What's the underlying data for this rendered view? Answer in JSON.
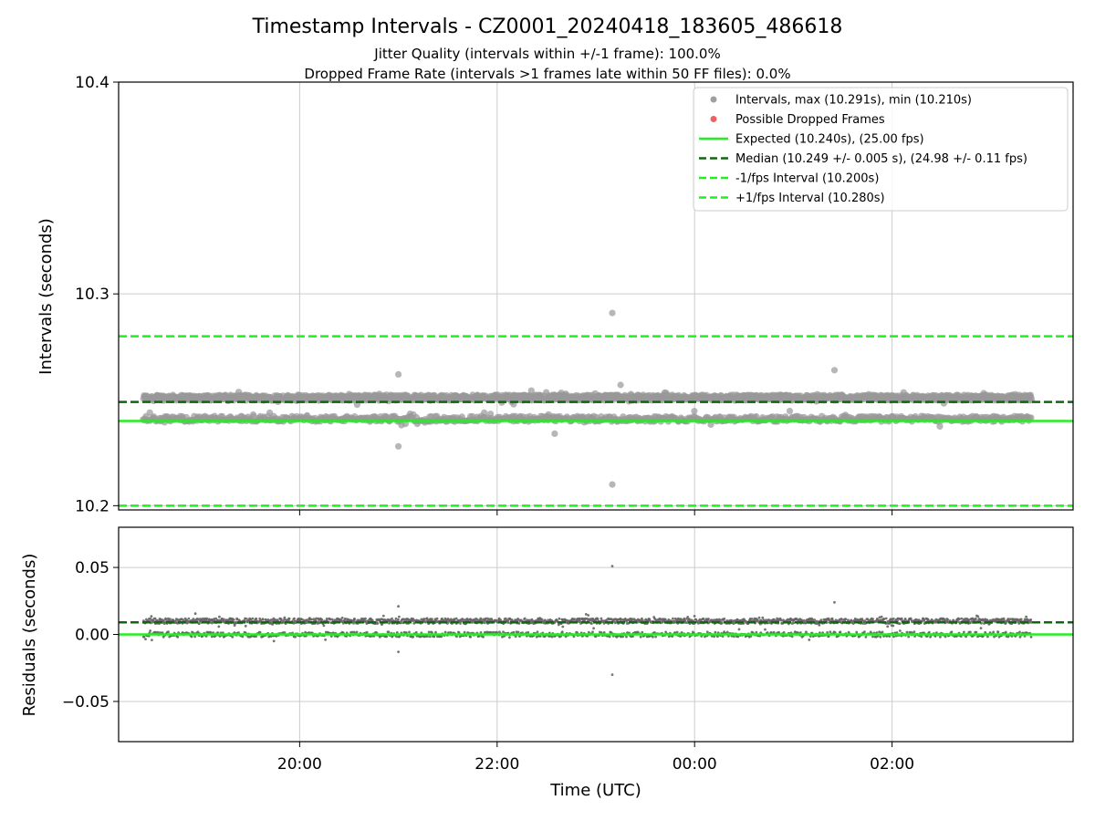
{
  "chart_data": {
    "title": "Timestamp Intervals - CZ0001_20240418_183605_486618",
    "subtitle_1": "Jitter Quality (intervals within +/-1 frame): 100.0%",
    "subtitle_2": "Dropped Frame Rate (intervals >1 frames late within 50 FF files): 0.0%",
    "xlabel": "Time (UTC)",
    "x_ticks": [
      "20:00",
      "22:00",
      "00:00",
      "02:00"
    ],
    "x_range": [
      "2024-04-18 18:10",
      "2024-04-19 03:50"
    ],
    "data_x_range": [
      "2024-04-18 18:25",
      "2024-04-19 03:25"
    ],
    "panels": [
      {
        "type": "scatter",
        "ylabel": "Intervals (seconds)",
        "ylim": [
          10.198,
          10.4
        ],
        "y_ticks": [
          "10.2",
          "10.3",
          "10.4"
        ],
        "grid": true,
        "legend_position": "top-right",
        "clusters": [
          10.251,
          10.241
        ],
        "outliers": [
          {
            "time": "2024-04-18 21:00",
            "value": 10.262
          },
          {
            "time": "2024-04-18 21:00",
            "value": 10.228
          },
          {
            "time": "2024-04-18 23:10",
            "value": 10.291
          },
          {
            "time": "2024-04-18 23:10",
            "value": 10.21
          },
          {
            "time": "2024-04-19 01:25",
            "value": 10.264
          },
          {
            "time": "2024-04-18 22:35",
            "value": 10.234
          },
          {
            "time": "2024-04-18 23:15",
            "value": 10.257
          }
        ],
        "lines": [
          {
            "name": "Expected (10.240s), (25.00 fps)",
            "value": 10.24,
            "style": "solid",
            "color": "#22ee22"
          },
          {
            "name": "Median (10.249 +/- 0.005 s), (24.98 +/- 0.11 fps)",
            "value": 10.249,
            "style": "dashed",
            "color": "#116611"
          },
          {
            "name": "-1/fps Interval (10.200s)",
            "value": 10.2,
            "style": "dashed",
            "color": "#22ee22"
          },
          {
            "name": "+1/fps Interval (10.280s)",
            "value": 10.28,
            "style": "dashed",
            "color": "#22ee22"
          }
        ],
        "legend": [
          {
            "label": "Intervals, max (10.291s), min (10.210s)",
            "marker": "dot",
            "color": "#a0a0a0"
          },
          {
            "label": "Possible Dropped Frames",
            "marker": "dot",
            "color": "#f06060"
          },
          {
            "label": "Expected (10.240s), (25.00 fps)",
            "marker": "solid",
            "color": "#22ee22"
          },
          {
            "label": "Median (10.249 +/- 0.005 s), (24.98 +/- 0.11 fps)",
            "marker": "dashed",
            "color": "#116611"
          },
          {
            "label": "-1/fps Interval (10.200s)",
            "marker": "dashed",
            "color": "#22ee22"
          },
          {
            "label": "+1/fps Interval (10.280s)",
            "marker": "dashed",
            "color": "#22ee22"
          }
        ]
      },
      {
        "type": "scatter",
        "ylabel": "Residuals (seconds)",
        "ylim": [
          -0.08,
          0.08
        ],
        "y_ticks": [
          "−0.05",
          "0.00",
          "0.05"
        ],
        "grid": true,
        "clusters": [
          0.01,
          0.0
        ],
        "outliers": [
          {
            "time": "2024-04-18 21:00",
            "value": 0.021
          },
          {
            "time": "2024-04-18 21:00",
            "value": -0.013
          },
          {
            "time": "2024-04-18 23:10",
            "value": 0.051
          },
          {
            "time": "2024-04-18 23:10",
            "value": -0.03
          },
          {
            "time": "2024-04-19 01:25",
            "value": 0.024
          }
        ],
        "lines": [
          {
            "value": 0.0,
            "style": "solid",
            "color": "#22ee22"
          },
          {
            "value": 0.009,
            "style": "dashed",
            "color": "#116611"
          }
        ]
      }
    ]
  }
}
